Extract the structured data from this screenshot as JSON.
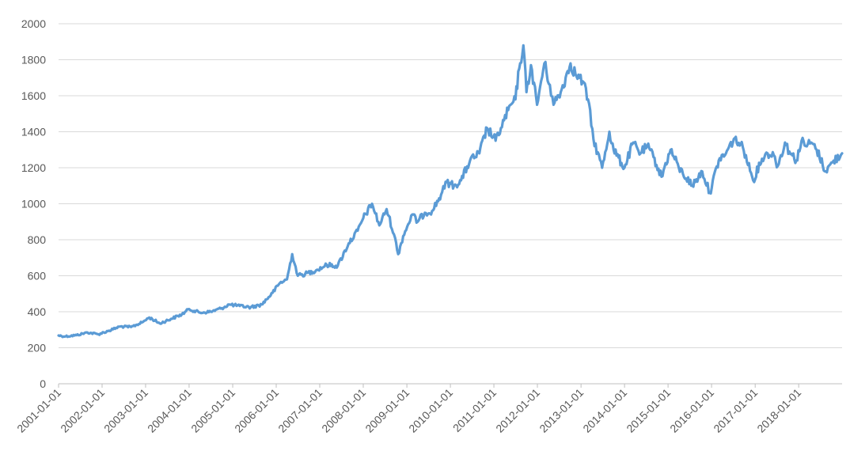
{
  "chart_data": {
    "type": "line",
    "title": "",
    "xlabel": "",
    "ylabel": "",
    "ylim": [
      0,
      2000
    ],
    "yticks": [
      0,
      200,
      400,
      600,
      800,
      1000,
      1200,
      1400,
      1600,
      1800,
      2000
    ],
    "xlim": [
      "2001-01-01",
      "2018-12-31"
    ],
    "xticks": [
      "2001-01-01",
      "2002-01-01",
      "2003-01-01",
      "2004-01-01",
      "2005-01-01",
      "2006-01-01",
      "2007-01-01",
      "2008-01-01",
      "2009-01-01",
      "2010-01-01",
      "2011-01-01",
      "2012-01-01",
      "2013-01-01",
      "2014-01-01",
      "2015-01-01",
      "2016-01-01",
      "2017-01-01",
      "2018-01-01"
    ],
    "grid": true,
    "legend": "none",
    "colors": {
      "series": "#5b9bd5",
      "grid": "#d9d9d9",
      "text": "#595959",
      "axis": "#bfbfbf"
    },
    "series": [
      {
        "x": [
          "2001-01-01",
          "2001-03-01",
          "2001-06-01",
          "2001-09-01",
          "2001-12-01",
          "2002-03-01",
          "2002-06-01",
          "2002-09-01",
          "2002-12-01",
          "2003-02-01",
          "2003-05-01",
          "2003-08-01",
          "2003-11-01",
          "2004-01-01",
          "2004-04-01",
          "2004-07-01",
          "2004-10-01",
          "2004-12-01",
          "2005-03-01",
          "2005-06-01",
          "2005-09-01",
          "2005-12-01",
          "2006-02-01",
          "2006-04-01",
          "2006-05-15",
          "2006-07-01",
          "2006-09-01",
          "2006-12-01",
          "2007-03-01",
          "2007-06-01",
          "2007-09-01",
          "2007-11-15",
          "2008-01-01",
          "2008-03-15",
          "2008-05-15",
          "2008-07-15",
          "2008-09-15",
          "2008-10-20",
          "2008-12-01",
          "2009-02-15",
          "2009-04-01",
          "2009-06-01",
          "2009-08-01",
          "2009-10-15",
          "2009-12-01",
          "2010-02-01",
          "2010-04-01",
          "2010-06-15",
          "2010-09-01",
          "2010-11-05",
          "2011-01-15",
          "2011-03-01",
          "2011-05-01",
          "2011-07-01",
          "2011-08-01",
          "2011-09-05",
          "2011-10-01",
          "2011-11-08",
          "2011-12-29",
          "2012-02-28",
          "2012-04-15",
          "2012-05-15",
          "2012-07-15",
          "2012-10-05",
          "2012-11-15",
          "2013-01-15",
          "2013-03-01",
          "2013-04-15",
          "2013-06-27",
          "2013-08-27",
          "2013-10-01",
          "2013-12-31",
          "2014-03-15",
          "2014-05-15",
          "2014-07-10",
          "2014-09-01",
          "2014-11-07",
          "2015-01-22",
          "2015-04-01",
          "2015-07-24",
          "2015-10-15",
          "2015-12-17",
          "2016-03-01",
          "2016-05-01",
          "2016-07-06",
          "2016-09-01",
          "2016-10-15",
          "2016-12-15",
          "2017-02-27",
          "2017-04-15",
          "2017-06-06",
          "2017-07-10",
          "2017-09-08",
          "2017-10-15",
          "2017-12-12",
          "2018-01-25",
          "2018-03-01",
          "2018-04-15",
          "2018-06-01",
          "2018-08-16",
          "2018-10-11",
          "2018-12-31"
        ],
        "y": [
          268,
          263,
          270,
          285,
          275,
          295,
          318,
          315,
          340,
          368,
          335,
          360,
          385,
          415,
          395,
          400,
          420,
          440,
          432,
          425,
          440,
          505,
          560,
          580,
          720,
          600,
          610,
          630,
          660,
          655,
          780,
          850,
          920,
          1000,
          880,
          970,
          830,
          720,
          820,
          940,
          900,
          950,
          960,
          1050,
          1120,
          1100,
          1130,
          1240,
          1280,
          1420,
          1350,
          1420,
          1520,
          1580,
          1750,
          1880,
          1620,
          1770,
          1550,
          1780,
          1660,
          1550,
          1620,
          1780,
          1720,
          1680,
          1580,
          1360,
          1200,
          1400,
          1300,
          1200,
          1340,
          1280,
          1320,
          1260,
          1150,
          1300,
          1200,
          1100,
          1180,
          1060,
          1240,
          1280,
          1360,
          1330,
          1270,
          1130,
          1250,
          1280,
          1270,
          1210,
          1340,
          1290,
          1240,
          1350,
          1320,
          1340,
          1300,
          1180,
          1230,
          1280
        ]
      }
    ]
  }
}
